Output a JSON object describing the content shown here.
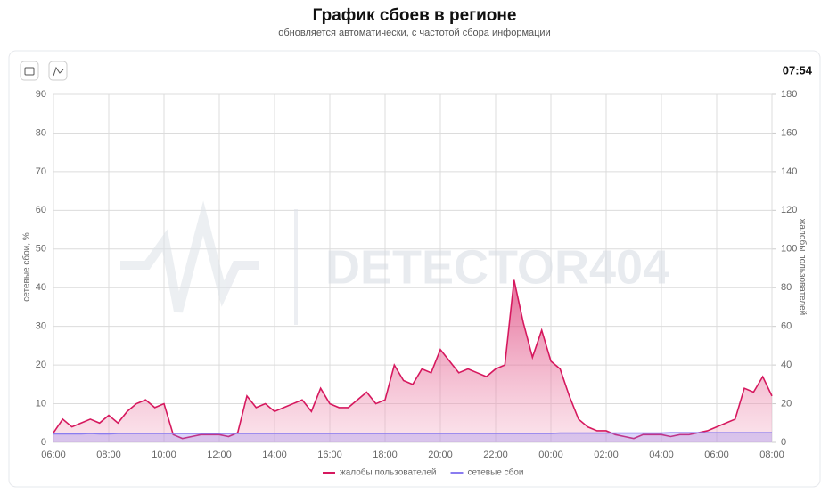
{
  "header": {
    "title": "График сбоев в регионе",
    "subtitle": "обновляется автоматически, с частотой сбора информации",
    "time": "07:54"
  },
  "chart_data": {
    "type": "area",
    "watermark": "DETECTOR404",
    "y_label": "сетевые сбои, %",
    "y2_label": "жалобы пользователей",
    "categories": [
      "06:00",
      null,
      null,
      null,
      null,
      null,
      "08:00",
      null,
      null,
      null,
      null,
      null,
      "10:00",
      null,
      null,
      null,
      null,
      null,
      "12:00",
      null,
      null,
      null,
      null,
      null,
      "14:00",
      null,
      null,
      null,
      null,
      null,
      "16:00",
      null,
      null,
      null,
      null,
      null,
      "18:00",
      null,
      null,
      null,
      null,
      null,
      "20:00",
      null,
      null,
      null,
      null,
      null,
      "22:00",
      null,
      null,
      null,
      null,
      null,
      "00:00",
      null,
      null,
      null,
      null,
      null,
      "02:00",
      null,
      null,
      null,
      null,
      null,
      "04:00",
      null,
      null,
      null,
      null,
      null,
      "06:00",
      null,
      null,
      null,
      null,
      null,
      "08:00"
    ],
    "series": [
      {
        "name": "жалобы пользователей",
        "color": "#d6185e",
        "axis": "y2",
        "values": [
          5,
          12,
          8,
          10,
          12,
          10,
          14,
          10,
          16,
          20,
          22,
          18,
          20,
          4,
          2,
          3,
          4,
          4,
          4,
          3,
          5,
          24,
          18,
          20,
          16,
          18,
          20,
          22,
          16,
          28,
          20,
          18,
          18,
          22,
          26,
          20,
          22,
          40,
          32,
          30,
          38,
          36,
          48,
          42,
          36,
          38,
          36,
          34,
          38,
          40,
          84,
          62,
          44,
          58,
          42,
          38,
          24,
          12,
          8,
          6,
          6,
          4,
          3,
          2,
          4,
          4,
          4,
          3,
          4,
          4,
          5,
          6,
          8,
          10,
          12,
          28,
          26,
          34,
          24
        ]
      },
      {
        "name": "сетевые сбои",
        "color": "#8a7cf0",
        "values": [
          2.2,
          2.2,
          2.2,
          2.2,
          2.3,
          2.2,
          2.2,
          2.3,
          2.3,
          2.3,
          2.3,
          2.3,
          2.3,
          2.3,
          2.3,
          2.3,
          2.3,
          2.3,
          2.3,
          2.3,
          2.3,
          2.3,
          2.3,
          2.3,
          2.3,
          2.3,
          2.3,
          2.3,
          2.3,
          2.3,
          2.3,
          2.3,
          2.3,
          2.3,
          2.3,
          2.3,
          2.3,
          2.3,
          2.3,
          2.3,
          2.3,
          2.3,
          2.3,
          2.3,
          2.3,
          2.3,
          2.3,
          2.3,
          2.3,
          2.3,
          2.3,
          2.3,
          2.3,
          2.3,
          2.3,
          2.4,
          2.4,
          2.4,
          2.4,
          2.4,
          2.4,
          2.4,
          2.4,
          2.4,
          2.4,
          2.4,
          2.4,
          2.5,
          2.5,
          2.5,
          2.5,
          2.5,
          2.5,
          2.5,
          2.5,
          2.5,
          2.5,
          2.5,
          2.5
        ]
      }
    ],
    "ylim": [
      0,
      90
    ],
    "yticks": [
      0,
      10,
      20,
      30,
      40,
      50,
      60,
      70,
      80,
      90
    ],
    "y2lim": [
      0,
      180
    ],
    "y2ticks": [
      0,
      20,
      40,
      60,
      80,
      100,
      120,
      140,
      160,
      180
    ],
    "grid": true,
    "legend": "bottom"
  }
}
